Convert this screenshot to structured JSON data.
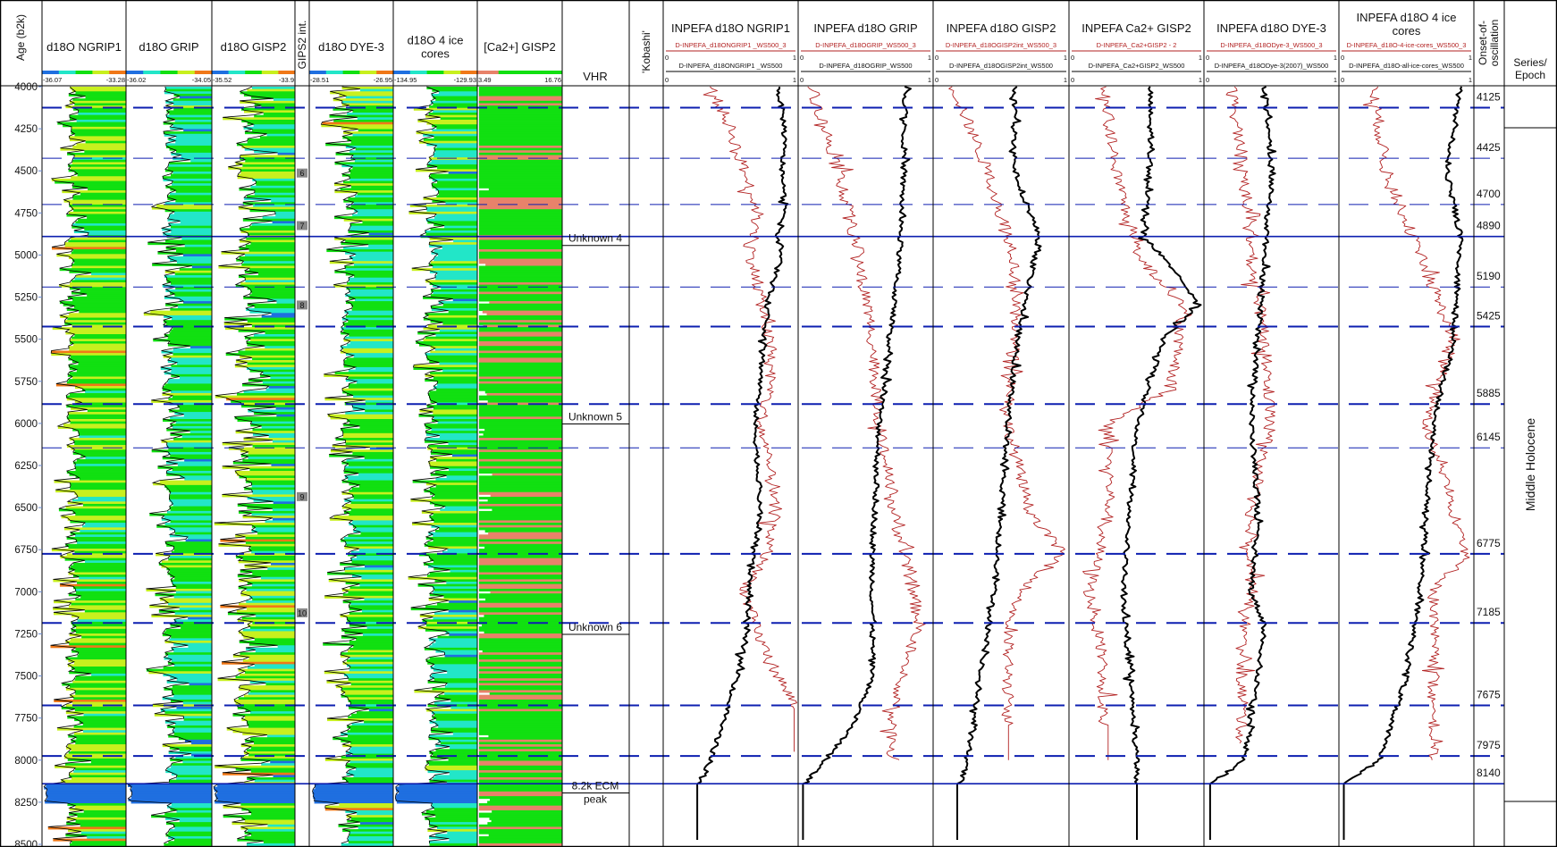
{
  "chart_data": {
    "type": "line",
    "title": "",
    "age_axis": {
      "label": "Age (b2k)",
      "range": [
        4000,
        8500
      ],
      "ticks": [
        4000,
        4250,
        4500,
        4750,
        5000,
        5250,
        5500,
        5750,
        6000,
        6250,
        6500,
        6750,
        7000,
        7250,
        7500,
        7750,
        8000,
        8250,
        8500
      ]
    },
    "colors": {
      "ramp": [
        "#1f6fe0",
        "#22e6c8",
        "#11e011",
        "#c8f01e",
        "#f07818"
      ],
      "ca_ramp": [
        "#e8826a",
        "#11e011"
      ],
      "inpefa_red": "#b22222",
      "inpefa_black": "#000000",
      "marker_line": "#0d1fb0"
    },
    "log_tracks": [
      {
        "title": "d18O NGRIP1",
        "min": "-36.07",
        "max": "-33.28",
        "mean": 0.35,
        "spread": 0.22
      },
      {
        "title": "d18O GRIP",
        "min": "-36.02",
        "max": "-34.05",
        "mean": 0.5,
        "spread": 0.25
      },
      {
        "title": "d18O GISP2",
        "min": "-35.52",
        "max": "-33.9",
        "mean": 0.4,
        "spread": 0.35
      },
      {
        "title": "GIPS2 int.",
        "narrow": true,
        "markers": [
          {
            "label": "6",
            "age": 4513
          },
          {
            "label": "7",
            "age": 4825
          },
          {
            "label": "8",
            "age": 5297
          },
          {
            "label": "9",
            "age": 6435
          },
          {
            "label": "10",
            "age": 7125
          }
        ]
      },
      {
        "title": "d18O DYE-3",
        "min": "-28.51",
        "max": "-26.95",
        "mean": 0.45,
        "spread": 0.25
      },
      {
        "title_lines": [
          "d18O 4 ice",
          "cores"
        ],
        "min": "-134.95",
        "max": "-129.93",
        "mean": 0.45,
        "spread": 0.22
      },
      {
        "title": "[Ca2+] GISP2",
        "min": "3.49",
        "max": "16.76",
        "ca": true
      }
    ],
    "vhr": {
      "title": "VHR",
      "events": [
        {
          "label": "Unknown 4",
          "age": 4890
        },
        {
          "label": "Unknown 5",
          "age": 5950
        },
        {
          "label": "Unknown 6",
          "age": 7200
        },
        {
          "label_lines": [
            "8.2k ECM",
            "peak"
          ],
          "age": 8200
        }
      ]
    },
    "kobashi": {
      "title": "'Kobashi'"
    },
    "inpefa_tracks": [
      {
        "title_lines": [
          "INPEFA d18O NGRIP1"
        ],
        "red_label": "D-INPEFA_d18ONGRIP1 _WS500_3",
        "black_label": "D-INPEFA_d18ONGRIP1 _WS500",
        "scale": [
          "0",
          "1"
        ],
        "black": [
          [
            4000,
            0.85
          ],
          [
            4250,
            0.9
          ],
          [
            4500,
            0.88
          ],
          [
            4750,
            0.9
          ],
          [
            4890,
            0.85
          ],
          [
            5000,
            0.88
          ],
          [
            5250,
            0.78
          ],
          [
            5500,
            0.75
          ],
          [
            5750,
            0.72
          ],
          [
            6000,
            0.68
          ],
          [
            6250,
            0.7
          ],
          [
            6500,
            0.72
          ],
          [
            6750,
            0.68
          ],
          [
            7000,
            0.63
          ],
          [
            7250,
            0.62
          ],
          [
            7500,
            0.55
          ],
          [
            7750,
            0.45
          ],
          [
            8000,
            0.35
          ],
          [
            8140,
            0.28
          ]
        ],
        "red": [
          [
            4000,
            0.35
          ],
          [
            4250,
            0.5
          ],
          [
            4500,
            0.6
          ],
          [
            4750,
            0.7
          ],
          [
            5000,
            0.65
          ],
          [
            5250,
            0.72
          ],
          [
            5500,
            0.78
          ],
          [
            5750,
            0.8
          ],
          [
            6000,
            0.72
          ],
          [
            6250,
            0.78
          ],
          [
            6500,
            0.82
          ],
          [
            6750,
            0.78
          ],
          [
            7000,
            0.6
          ],
          [
            7250,
            0.7
          ],
          [
            7500,
            0.85
          ],
          [
            7700,
            0.99
          ]
        ]
      },
      {
        "title_lines": [
          "INPEFA d18O GRIP"
        ],
        "red_label": "D-INPEFA_d18OGRIP_WS500_3",
        "black_label": "D-INPEFA_d18OGRIP_WS500",
        "scale": [
          "0",
          "1"
        ],
        "black": [
          [
            4000,
            0.8
          ],
          [
            4500,
            0.78
          ],
          [
            5000,
            0.75
          ],
          [
            5500,
            0.68
          ],
          [
            6000,
            0.6
          ],
          [
            6500,
            0.57
          ],
          [
            6750,
            0.55
          ],
          [
            7500,
            0.55
          ],
          [
            7800,
            0.4
          ],
          [
            8000,
            0.2
          ],
          [
            8140,
            0.05
          ]
        ],
        "red": [
          [
            4000,
            0.1
          ],
          [
            4500,
            0.3
          ],
          [
            5000,
            0.45
          ],
          [
            5500,
            0.55
          ],
          [
            6000,
            0.6
          ],
          [
            6500,
            0.7
          ],
          [
            7000,
            0.85
          ],
          [
            7200,
            0.9
          ],
          [
            7500,
            0.75
          ],
          [
            7800,
            0.7
          ],
          [
            8000,
            0.7
          ]
        ]
      },
      {
        "title_lines": [
          "INPEFA d18O GISP2"
        ],
        "red_label": "D-INPEFA_d18OGISP2int_WS500_3",
        "black_label": "D-INPEFA_d18OGISP2int_WS500",
        "scale": [
          "0",
          "1"
        ],
        "black": [
          [
            4000,
            0.6
          ],
          [
            4500,
            0.6
          ],
          [
            4890,
            0.78
          ],
          [
            5500,
            0.62
          ],
          [
            6000,
            0.55
          ],
          [
            6500,
            0.5
          ],
          [
            7000,
            0.45
          ],
          [
            7500,
            0.35
          ],
          [
            8000,
            0.25
          ],
          [
            8140,
            0.2
          ]
        ],
        "red": [
          [
            4000,
            0.15
          ],
          [
            4500,
            0.4
          ],
          [
            5000,
            0.6
          ],
          [
            5500,
            0.6
          ],
          [
            6000,
            0.55
          ],
          [
            6500,
            0.7
          ],
          [
            6775,
            0.95
          ],
          [
            7000,
            0.65
          ],
          [
            7200,
            0.55
          ],
          [
            7800,
            0.55
          ]
        ]
      },
      {
        "title_lines": [
          "INPEFA Ca2+ GISP2"
        ],
        "red_label": "D-INPEFA_Ca2+GISP2 - 2",
        "black_label": "D-INPEFA_Ca2+GISP2_WS500",
        "scale": [
          "0",
          "1"
        ],
        "black": [
          [
            4000,
            0.6
          ],
          [
            4500,
            0.6
          ],
          [
            4890,
            0.55
          ],
          [
            5100,
            0.8
          ],
          [
            5300,
            0.95
          ],
          [
            5500,
            0.7
          ],
          [
            6000,
            0.5
          ],
          [
            6500,
            0.45
          ],
          [
            7000,
            0.4
          ],
          [
            7500,
            0.45
          ],
          [
            8000,
            0.5
          ],
          [
            8140,
            0.5
          ]
        ],
        "red": [
          [
            4000,
            0.25
          ],
          [
            4500,
            0.35
          ],
          [
            5000,
            0.5
          ],
          [
            5300,
            0.85
          ],
          [
            5800,
            0.75
          ],
          [
            6000,
            0.3
          ],
          [
            6500,
            0.3
          ],
          [
            7000,
            0.15
          ],
          [
            7400,
            0.25
          ],
          [
            7800,
            0.25
          ]
        ]
      },
      {
        "title_lines": [
          "INPEFA d18O DYE-3"
        ],
        "red_label": "D-INPEFA_d18ODye-3_WS500_3",
        "black_label": "D-INPEFA_d18ODye-3(2007)_WS500",
        "scale": [
          "0",
          "1"
        ],
        "black": [
          [
            4000,
            0.45
          ],
          [
            4500,
            0.5
          ],
          [
            5000,
            0.45
          ],
          [
            5500,
            0.4
          ],
          [
            6000,
            0.35
          ],
          [
            6500,
            0.4
          ],
          [
            7000,
            0.35
          ],
          [
            7200,
            0.45
          ],
          [
            7500,
            0.4
          ],
          [
            8000,
            0.3
          ],
          [
            8140,
            0.05
          ]
        ],
        "red": [
          [
            4000,
            0.2
          ],
          [
            4500,
            0.3
          ],
          [
            5000,
            0.35
          ],
          [
            5500,
            0.45
          ],
          [
            6000,
            0.5
          ],
          [
            6500,
            0.35
          ],
          [
            7000,
            0.35
          ],
          [
            7300,
            0.28
          ],
          [
            7900,
            0.28
          ]
        ]
      },
      {
        "title_lines": [
          "INPEFA d18O 4 ice",
          "cores"
        ],
        "red_label": "D-INPEFA_d18O-4-ice-cores_WS500_3",
        "black_label": "D-INPEFA_d18O-all-ice-cores_WS500",
        "scale": [
          "0",
          "1"
        ],
        "black": [
          [
            4000,
            0.9
          ],
          [
            4500,
            0.8
          ],
          [
            4890,
            0.9
          ],
          [
            5500,
            0.85
          ],
          [
            6000,
            0.7
          ],
          [
            6500,
            0.65
          ],
          [
            7000,
            0.6
          ],
          [
            7500,
            0.5
          ],
          [
            8000,
            0.3
          ],
          [
            8140,
            0.05
          ]
        ],
        "red": [
          [
            4000,
            0.25
          ],
          [
            4500,
            0.35
          ],
          [
            5000,
            0.6
          ],
          [
            5500,
            0.85
          ],
          [
            6000,
            0.65
          ],
          [
            6500,
            0.85
          ],
          [
            6775,
            0.95
          ],
          [
            7000,
            0.7
          ],
          [
            7500,
            0.7
          ],
          [
            8000,
            0.7
          ]
        ]
      }
    ],
    "onset": {
      "title_lines": [
        "Onset-of-",
        "oscillation"
      ],
      "ages": [
        {
          "age": 4125,
          "label": "4125",
          "style": "thick"
        },
        {
          "age": 4425,
          "label": "4425",
          "style": "thin"
        },
        {
          "age": 4700,
          "label": "4700",
          "style": "thin"
        },
        {
          "age": 4890,
          "label": "4890",
          "style": "solid"
        },
        {
          "age": 5190,
          "label": "5190",
          "style": "thin"
        },
        {
          "age": 5425,
          "label": "5425",
          "style": "thick"
        },
        {
          "age": 5885,
          "label": "5885",
          "style": "thick"
        },
        {
          "age": 6145,
          "label": "6145",
          "style": "thin"
        },
        {
          "age": 6775,
          "label": "6775",
          "style": "thick"
        },
        {
          "age": 7185,
          "label": "7185",
          "style": "thick"
        },
        {
          "age": 7675,
          "label": "7675",
          "style": "thick"
        },
        {
          "age": 7975,
          "label": "7975",
          "style": "thick"
        },
        {
          "age": 8140,
          "label": "8140",
          "style": "solid"
        }
      ]
    },
    "series": {
      "title_lines": [
        "Series/",
        "Epoch"
      ],
      "label": "Middle Holocene",
      "bounds": [
        4244,
        8245
      ]
    }
  }
}
